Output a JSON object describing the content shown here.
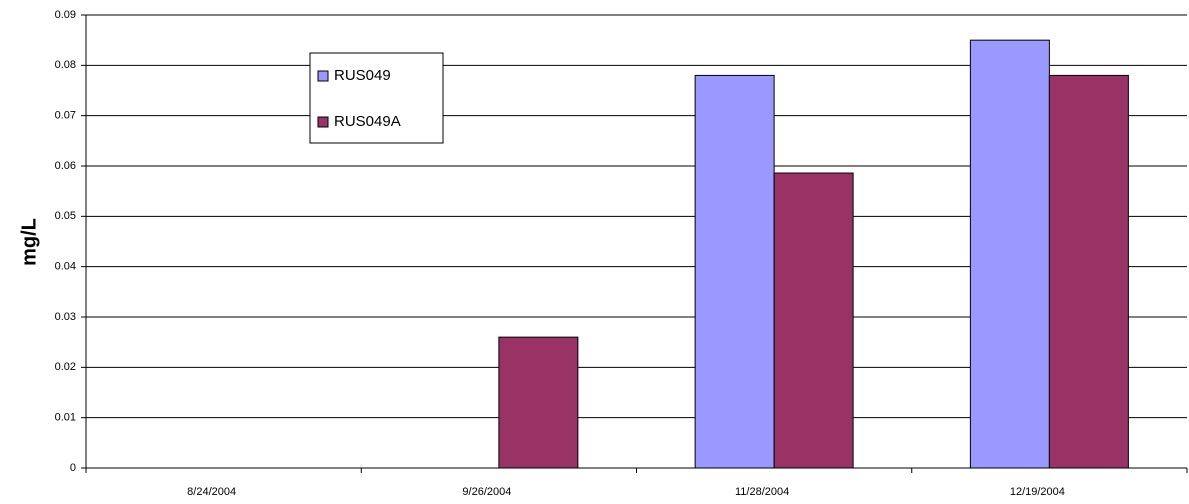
{
  "chart_data": {
    "type": "bar",
    "y_label": "mg/L",
    "categories": [
      "8/24/2004",
      "9/26/2004",
      "11/28/2004",
      "12/19/2004"
    ],
    "series": [
      {
        "name": "RUS049",
        "color": "#9999ff",
        "values": [
          null,
          null,
          0.078,
          0.085
        ]
      },
      {
        "name": "RUS049A",
        "color": "#993366",
        "values": [
          null,
          0.026,
          0.0586,
          0.078
        ]
      }
    ],
    "ylim": [
      0,
      0.09
    ],
    "yticks": [
      0,
      0.01,
      0.02,
      0.03,
      0.04,
      0.05,
      0.06,
      0.07,
      0.08,
      0.09
    ],
    "grid": true
  }
}
